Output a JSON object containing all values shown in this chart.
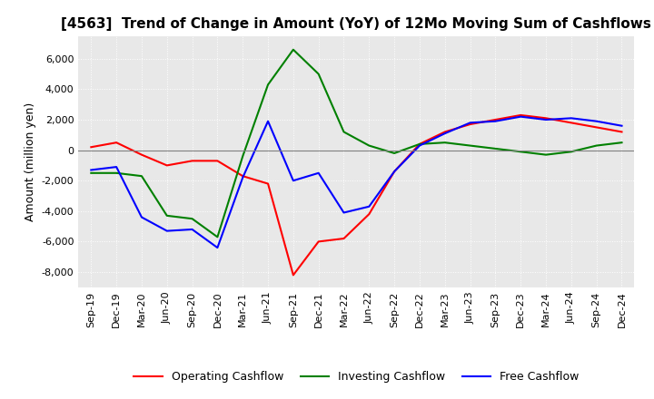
{
  "title": "[4563]  Trend of Change in Amount (YoY) of 12Mo Moving Sum of Cashflows",
  "ylabel": "Amount (million yen)",
  "x_labels": [
    "Sep-19",
    "Dec-19",
    "Mar-20",
    "Jun-20",
    "Sep-20",
    "Dec-20",
    "Mar-21",
    "Jun-21",
    "Sep-21",
    "Dec-21",
    "Mar-22",
    "Jun-22",
    "Sep-22",
    "Dec-22",
    "Mar-23",
    "Jun-23",
    "Sep-23",
    "Dec-23",
    "Mar-24",
    "Jun-24",
    "Sep-24",
    "Dec-24"
  ],
  "operating": [
    200,
    500,
    -300,
    -1000,
    -700,
    -700,
    -1700,
    -2200,
    -8200,
    -6000,
    -5800,
    -4200,
    -1400,
    400,
    1200,
    1700,
    2000,
    2300,
    2100,
    1800,
    1500,
    1200
  ],
  "investing": [
    -1500,
    -1500,
    -1700,
    -4300,
    -4500,
    -5700,
    -400,
    4300,
    6600,
    5000,
    1200,
    300,
    -200,
    400,
    500,
    300,
    100,
    -100,
    -300,
    -100,
    300,
    500
  ],
  "free_cf": [
    -1300,
    -1100,
    -4400,
    -5300,
    -5200,
    -6400,
    -1800,
    1900,
    -2000,
    -1500,
    -4100,
    -3700,
    -1400,
    300,
    1100,
    1800,
    1900,
    2200,
    2000,
    2100,
    1900,
    1600
  ],
  "ylim": [
    -9000,
    7500
  ],
  "yticks": [
    -8000,
    -6000,
    -4000,
    -2000,
    0,
    2000,
    4000,
    6000
  ],
  "operating_color": "#ff0000",
  "investing_color": "#008000",
  "free_color": "#0000ff",
  "bg_color": "#e8e8e8",
  "grid_color": "#ffffff",
  "title_fontsize": 11,
  "label_fontsize": 9,
  "tick_fontsize": 8
}
